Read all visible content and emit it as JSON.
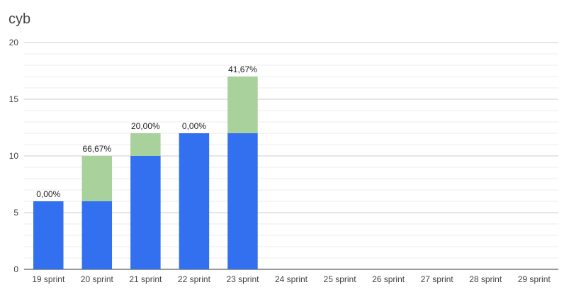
{
  "chart_data": {
    "type": "bar",
    "stacked": true,
    "title": "cyb",
    "categories": [
      "19 sprint",
      "20 sprint",
      "21 sprint",
      "22 sprint",
      "23 sprint",
      "24 sprint",
      "25 sprint",
      "26 sprint",
      "27 sprint",
      "28 sprint",
      "29 sprint"
    ],
    "series": [
      {
        "color": "#3370f0",
        "values": [
          6,
          6,
          10,
          12,
          12,
          null,
          null,
          null,
          null,
          null,
          null
        ]
      },
      {
        "color": "#a8d19b",
        "values": [
          0,
          4,
          2,
          0,
          5,
          null,
          null,
          null,
          null,
          null,
          null
        ]
      }
    ],
    "data_labels": [
      "0,00%",
      "66,67%",
      "20,00%",
      "0,00%",
      "41,67%",
      "",
      "",
      "",
      "",
      "",
      ""
    ],
    "y_ticks": [
      "0",
      "5",
      "10",
      "15",
      "20"
    ],
    "ylim": [
      0,
      20
    ],
    "grid": true,
    "legend": "none"
  }
}
